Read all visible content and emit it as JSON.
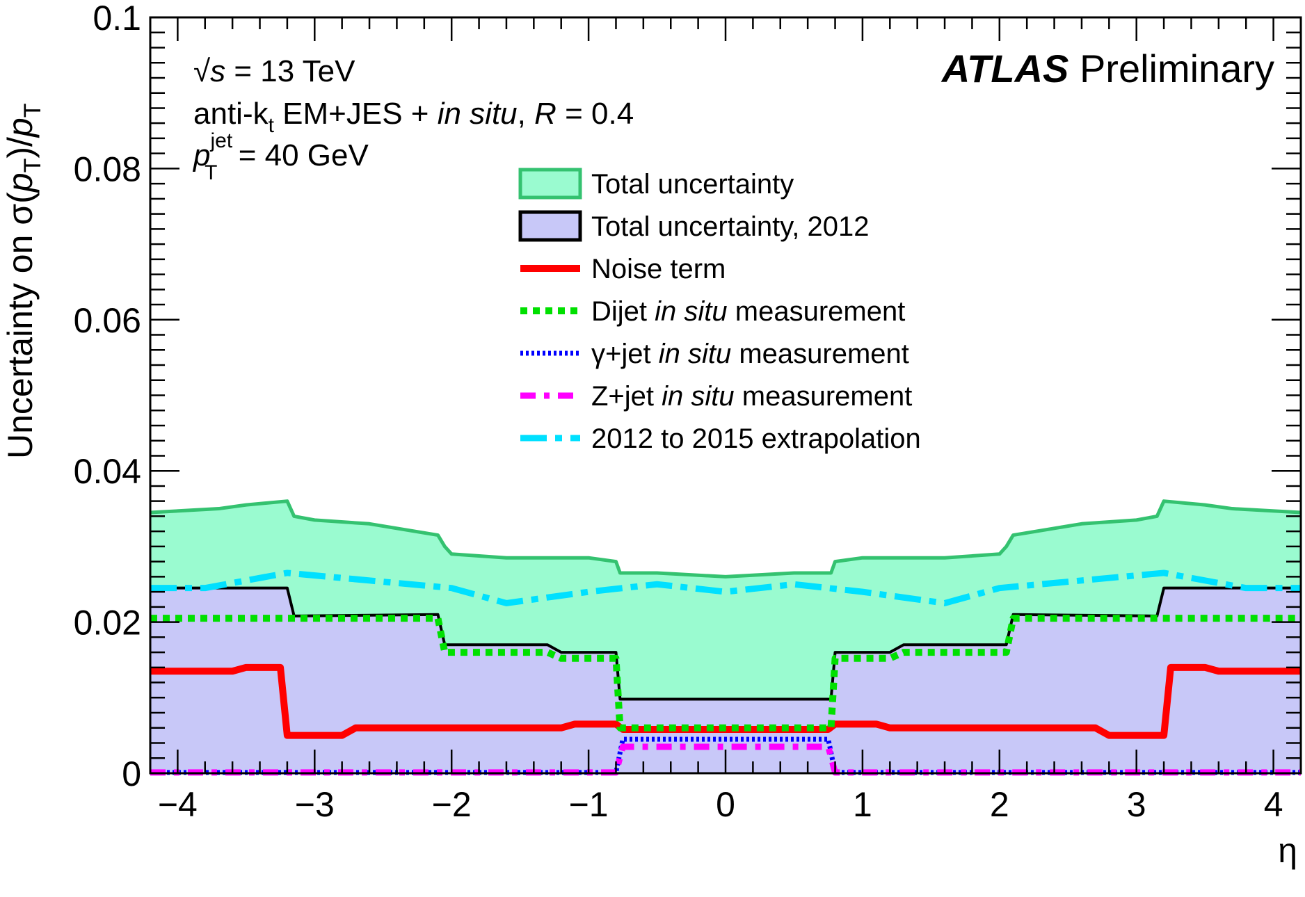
{
  "chart_data": {
    "type": "area",
    "title": "",
    "xlabel": "η",
    "ylabel": "Uncertainty on σ(pT)/pT",
    "xlim": [
      -4.2,
      4.2
    ],
    "ylim": [
      0,
      0.1
    ],
    "x_ticks": [
      "−4",
      "−3",
      "−2",
      "−1",
      "0",
      "1",
      "2",
      "3",
      "4"
    ],
    "x_tick_values": [
      -4,
      -3,
      -2,
      -1,
      0,
      1,
      2,
      3,
      4
    ],
    "y_ticks": [
      "0",
      "0.02",
      "0.04",
      "0.06",
      "0.08",
      "0.1"
    ],
    "y_tick_values": [
      0,
      0.02,
      0.04,
      0.06,
      0.08,
      0.1
    ],
    "grid": false,
    "legend_position": "top-center",
    "experiment": {
      "name": "ATLAS",
      "status": "Preliminary"
    },
    "info_lines": {
      "sqrt": "√",
      "s": "s",
      "energy": " = 13 TeV",
      "algo_prefix": "anti-k",
      "algo_sub": "t",
      "algo_mid": " EM+JES  + ",
      "insitu": "in situ",
      "radius_sep": ", ",
      "R": "R",
      "radius": " = 0.4",
      "pt_p": "p",
      "pt_sup": "jet",
      "pt_sub": "T",
      "pt_value": " = 40 GeV"
    },
    "ylabel_parts": {
      "pre": "Uncertainty on σ(",
      "p1": "p",
      "s1": "T",
      "mid": ")/",
      "p2": "p",
      "s2": "T"
    },
    "x": [
      -4.2,
      -3.6,
      -3.5,
      -3.3,
      -3.2,
      -3.1,
      -2.8,
      -2.7,
      -2.1,
      -2.0,
      -1.5,
      -1.3,
      -1.2,
      -0.8,
      -0.75,
      -0.7,
      0.7,
      0.75,
      0.8,
      1.2,
      1.3,
      1.5,
      2.0,
      2.1,
      2.7,
      2.8,
      3.1,
      3.2,
      3.3,
      3.5,
      3.6,
      4.2
    ],
    "series": [
      {
        "name": "Total uncertainty",
        "style": "band",
        "color": "#34c270",
        "fill": "#9afbd0",
        "x": [
          -4.2,
          -3.7,
          -3.5,
          -3.2,
          -3.15,
          -3.0,
          -2.6,
          -2.1,
          -2.05,
          -2.0,
          -1.6,
          -1.0,
          -0.8,
          -0.77,
          -0.7,
          -0.5,
          0.0,
          0.5,
          0.7,
          0.77,
          0.8,
          1.0,
          1.6,
          2.0,
          2.05,
          2.1,
          2.6,
          3.0,
          3.15,
          3.2,
          3.5,
          3.7,
          4.2
        ],
        "values": [
          0.0345,
          0.035,
          0.0355,
          0.036,
          0.034,
          0.0335,
          0.033,
          0.0315,
          0.03,
          0.029,
          0.0285,
          0.0285,
          0.028,
          0.0265,
          0.0265,
          0.0265,
          0.026,
          0.0265,
          0.0265,
          0.0265,
          0.028,
          0.0285,
          0.0285,
          0.029,
          0.03,
          0.0315,
          0.033,
          0.0335,
          0.034,
          0.036,
          0.0355,
          0.035,
          0.0345
        ]
      },
      {
        "name": "Total uncertainty, 2012",
        "style": "band",
        "color": "#000000",
        "fill": "#c8c8f8",
        "x": [
          -4.2,
          -3.2,
          -3.15,
          -2.1,
          -2.05,
          -1.3,
          -1.2,
          -0.8,
          -0.77,
          0.77,
          0.8,
          1.2,
          1.3,
          2.05,
          2.1,
          3.15,
          3.2,
          4.2
        ],
        "values": [
          0.0245,
          0.0245,
          0.0208,
          0.021,
          0.017,
          0.017,
          0.016,
          0.016,
          0.0098,
          0.0098,
          0.016,
          0.016,
          0.017,
          0.017,
          0.021,
          0.0208,
          0.0245,
          0.0245
        ]
      },
      {
        "name": "Noise term",
        "style": "solid",
        "color": "#ff0000",
        "x": [
          -4.2,
          -3.6,
          -3.5,
          -3.25,
          -3.2,
          -2.8,
          -2.7,
          -1.2,
          -1.1,
          -0.8,
          -0.75,
          0.75,
          0.8,
          1.1,
          1.2,
          2.7,
          2.8,
          3.2,
          3.25,
          3.5,
          3.6,
          4.2
        ],
        "values": [
          0.0135,
          0.0135,
          0.014,
          0.014,
          0.005,
          0.005,
          0.006,
          0.006,
          0.0065,
          0.0065,
          0.0058,
          0.0058,
          0.0065,
          0.0065,
          0.006,
          0.006,
          0.005,
          0.005,
          0.014,
          0.014,
          0.0135,
          0.0135
        ]
      },
      {
        "name": "Dijet in situ measurement",
        "style": "dotted",
        "color": "#00e000",
        "x": [
          -4.2,
          -3.15,
          -2.1,
          -2.05,
          -1.3,
          -1.2,
          -0.8,
          -0.77,
          0.77,
          0.8,
          1.2,
          1.3,
          2.05,
          2.1,
          3.15,
          4.2
        ],
        "values": [
          0.0205,
          0.0205,
          0.0205,
          0.016,
          0.016,
          0.0152,
          0.0152,
          0.006,
          0.006,
          0.0152,
          0.0152,
          0.016,
          0.016,
          0.0205,
          0.0205,
          0.0205
        ]
      },
      {
        "name": "γ+jet in situ measurement",
        "style": "fine-dotted",
        "color": "#0000ff",
        "x": [
          -4.2,
          -0.8,
          -0.75,
          0.75,
          0.8,
          4.2
        ],
        "values": [
          0.0001,
          0.0001,
          0.0045,
          0.0045,
          0.0001,
          0.0001
        ]
      },
      {
        "name": "Z+jet in situ measurement",
        "style": "dash-dot",
        "color": "#ff00ff",
        "x": [
          -4.2,
          -0.8,
          -0.75,
          0.75,
          0.8,
          4.2
        ],
        "values": [
          0.0001,
          0.0001,
          0.0035,
          0.0035,
          0.0001,
          0.0001
        ]
      },
      {
        "name": "2012 to 2015 extrapolation",
        "style": "dash-dot-long",
        "color": "#00e0ff",
        "x": [
          -4.2,
          -3.8,
          -3.2,
          -2.6,
          -2.0,
          -1.6,
          -1.0,
          -0.5,
          0.0,
          0.5,
          1.0,
          1.6,
          2.0,
          2.6,
          3.2,
          3.8,
          4.2
        ],
        "values": [
          0.0245,
          0.0245,
          0.0265,
          0.0255,
          0.0245,
          0.0225,
          0.024,
          0.025,
          0.024,
          0.025,
          0.024,
          0.0225,
          0.0245,
          0.0255,
          0.0265,
          0.0245,
          0.0245
        ]
      }
    ],
    "legend": [
      {
        "label": "Total uncertainty",
        "type": "box"
      },
      {
        "label": "Total uncertainty, 2012",
        "type": "box"
      },
      {
        "label": "Noise term",
        "type": "line"
      },
      {
        "label_pre": "Dijet ",
        "label_it": "in situ",
        "label_post": " measurement",
        "type": "line"
      },
      {
        "label_pre": "γ+jet ",
        "label_it": "in situ",
        "label_post": " measurement",
        "type": "line"
      },
      {
        "label_pre": "Z+jet ",
        "label_it": "in situ",
        "label_post": " measurement",
        "type": "line"
      },
      {
        "label": "2012 to 2015 extrapolation",
        "type": "line"
      }
    ]
  }
}
